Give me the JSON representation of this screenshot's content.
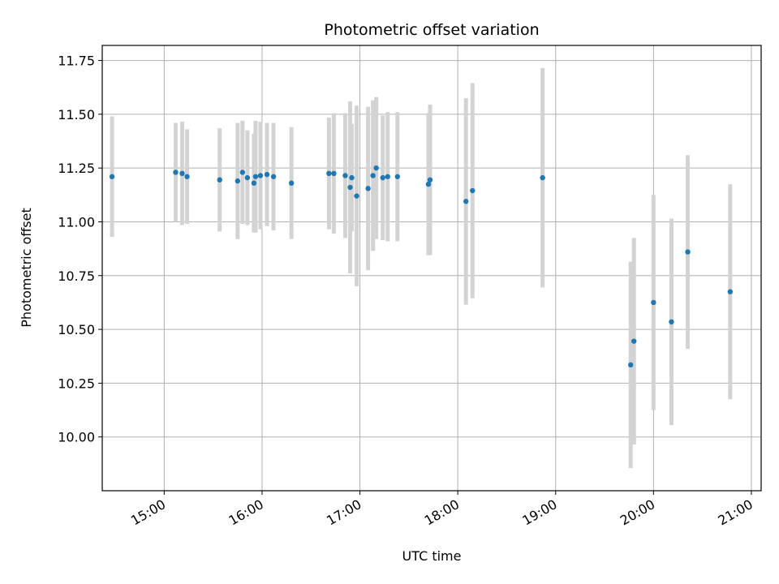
{
  "chart_data": {
    "type": "scatter",
    "title": "Photometric offset variation",
    "xlabel": "UTC time",
    "ylabel": "Photometric offset",
    "grid": true,
    "xlim": [
      "14:22",
      "21:06"
    ],
    "ylim": [
      9.75,
      11.82
    ],
    "x_ticks": [
      "15:00",
      "16:00",
      "17:00",
      "18:00",
      "19:00",
      "20:00",
      "21:00"
    ],
    "y_ticks": [
      "10.00",
      "10.25",
      "10.50",
      "10.75",
      "11.00",
      "11.25",
      "11.50",
      "11.75"
    ],
    "colors": {
      "points": "#1f77b4",
      "errorbars": "#d3d3d3",
      "grid": "#b0b0b0"
    },
    "series": [
      {
        "x": [
          "14:28",
          "15:07",
          "15:11",
          "15:14",
          "15:34",
          "15:45",
          "15:48",
          "15:51",
          "15:55",
          "15:56",
          "15:59",
          "16:03",
          "16:07",
          "16:18",
          "16:41",
          "16:44",
          "16:51",
          "16:54",
          "16:55",
          "16:58",
          "17:05",
          "17:08",
          "17:10",
          "17:14",
          "17:17",
          "17:23",
          "17:42",
          "17:43",
          "18:05",
          "18:09",
          "18:52",
          "19:46",
          "19:48",
          "20:00",
          "20:11",
          "20:21",
          "20:47"
        ],
        "y": [
          11.21,
          11.23,
          11.225,
          11.21,
          11.195,
          11.19,
          11.23,
          11.205,
          11.18,
          11.21,
          11.215,
          11.22,
          11.21,
          11.18,
          11.225,
          11.225,
          11.215,
          11.16,
          11.205,
          11.12,
          11.155,
          11.215,
          11.25,
          11.205,
          11.21,
          11.21,
          11.175,
          11.195,
          11.095,
          11.145,
          11.205,
          10.335,
          10.445,
          10.625,
          10.535,
          10.86,
          10.675
        ],
        "yerr": [
          0.28,
          0.23,
          0.24,
          0.22,
          0.24,
          0.27,
          0.24,
          0.22,
          0.23,
          0.26,
          0.25,
          0.24,
          0.25,
          0.26,
          0.26,
          0.28,
          0.29,
          0.4,
          0.25,
          0.42,
          0.38,
          0.35,
          0.33,
          0.29,
          0.3,
          0.3,
          0.33,
          0.35,
          0.48,
          0.5,
          0.51,
          0.48,
          0.48,
          0.5,
          0.48,
          0.45,
          0.5
        ]
      }
    ]
  }
}
